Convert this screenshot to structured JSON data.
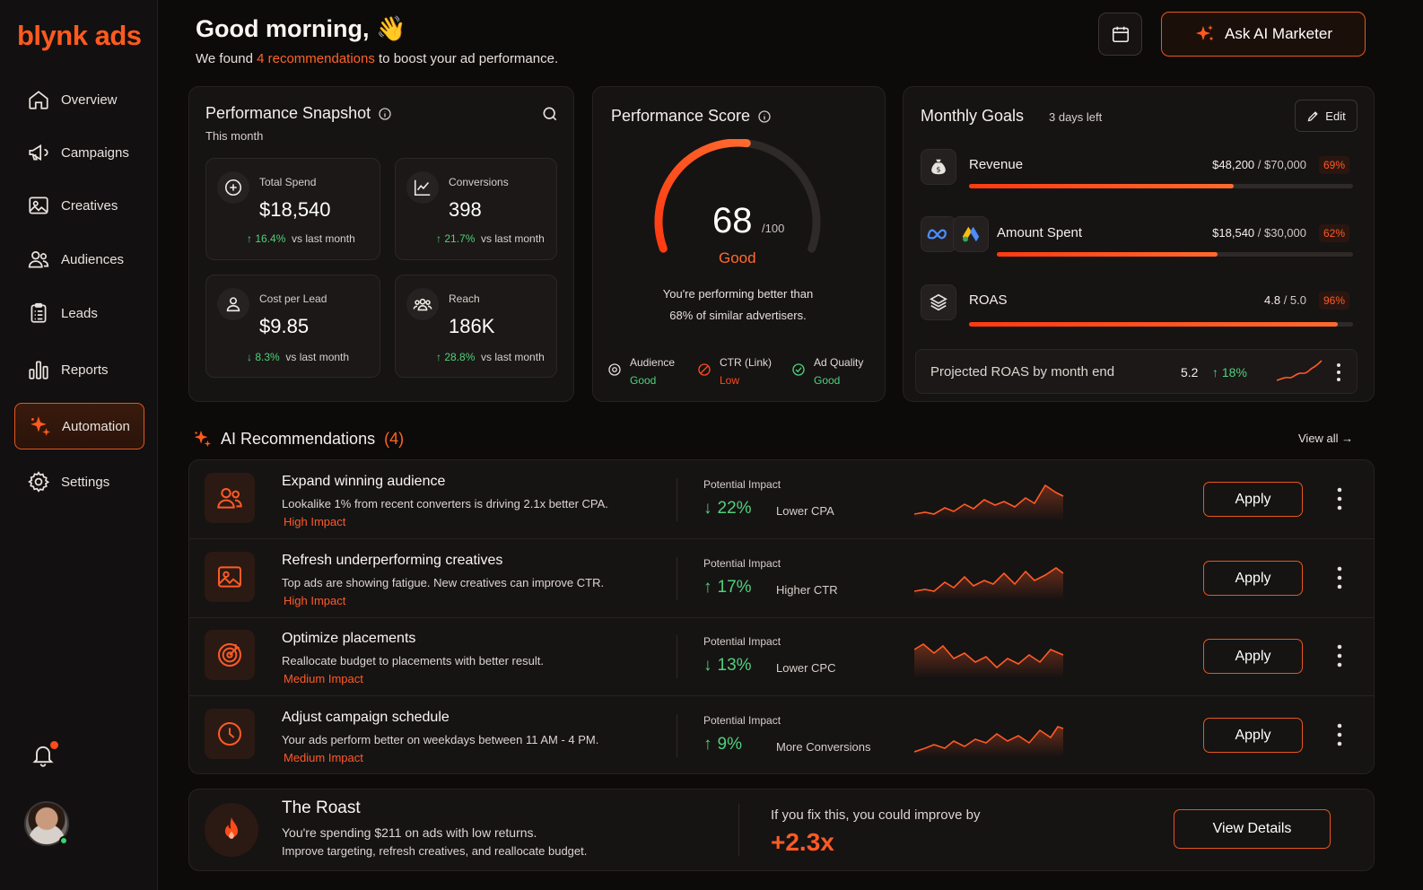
{
  "brand": {
    "logo": "blynk ads",
    "accent": "#ff5a1f"
  },
  "sidebar": {
    "items": [
      {
        "label": "Overview",
        "icon": "home-icon"
      },
      {
        "label": "Campaigns",
        "icon": "megaphone-icon"
      },
      {
        "label": "Creatives",
        "icon": "image-icon"
      },
      {
        "label": "Audiences",
        "icon": "users-icon"
      },
      {
        "label": "Leads",
        "icon": "clipboard-icon"
      },
      {
        "label": "Reports",
        "icon": "bar-chart-icon"
      },
      {
        "label": "Automation",
        "icon": "sparkle-icon",
        "active": true
      },
      {
        "label": "Settings",
        "icon": "gear-icon"
      }
    ]
  },
  "header": {
    "greeting": "Good morning, 👋",
    "sub_prefix": "We found ",
    "sub_highlight": "4 recommendations",
    "sub_suffix": " to boost your ad performance.",
    "ask_button": "Ask AI Marketer"
  },
  "snapshot": {
    "title": "Performance Snapshot",
    "period": "This month",
    "metrics": [
      {
        "label": "Total Spend",
        "value": "$18,540",
        "change": "16.4%",
        "suffix": "vs last month"
      },
      {
        "label": "Conversions",
        "value": "398",
        "change": "21.7%",
        "suffix": "vs last month"
      },
      {
        "label": "Cost per Lead",
        "value": "$9.85",
        "change": "8.3%",
        "suffix": "vs last month"
      },
      {
        "label": "Reach",
        "value": "186K",
        "change": "28.8%",
        "suffix": "vs last month"
      }
    ]
  },
  "score": {
    "title": "Performance Score",
    "value": "68",
    "max": "/100",
    "fraction": 0.68,
    "rating": "Good",
    "text_line1": "You're performing better than",
    "text_line2": "68% of similar advertisers.",
    "subs": [
      {
        "label": "Audience",
        "value": "Good"
      },
      {
        "label": "CTR (Link)",
        "value": "Low"
      },
      {
        "label": "Ad Quality",
        "value": "Good"
      }
    ]
  },
  "goals": {
    "title": "Monthly Goals",
    "days_left": "3 days left",
    "edit": "Edit",
    "items": [
      {
        "name": "Revenue",
        "current": "$48,200",
        "target": " / $70,000",
        "pct": "69%",
        "fraction": 0.69
      },
      {
        "name": "Amount Spent",
        "current": "$18,540",
        "target": " / $30,000",
        "pct": "62%",
        "fraction": 0.62
      },
      {
        "name": "ROAS",
        "current": "4.8",
        "target": " / 5.0",
        "pct": "96%",
        "fraction": 0.96
      }
    ],
    "projected_label": "Projected ROAS by month end",
    "projected_value": "5.2",
    "projected_change": "18%"
  },
  "recs": {
    "title": "AI Recommendations",
    "count": "(4)",
    "view_all": "View all →",
    "impact_label": "Potential Impact",
    "apply": "Apply",
    "items": [
      {
        "title": "Expand winning audience",
        "desc": "Lookalike 1% from recent converters is driving 2.1x better CPA.",
        "impact": "High Impact",
        "value": "22%",
        "dir": "down",
        "metric": "Lower CPA"
      },
      {
        "title": "Refresh underperforming creatives",
        "desc": "Top ads are showing fatigue. New creatives can improve CTR.",
        "impact": "High Impact",
        "value": "17%",
        "dir": "up",
        "metric": "Higher CTR"
      },
      {
        "title": "Optimize placements",
        "desc": "Reallocate budget to placements with better result.",
        "impact": "Medium Impact",
        "value": "13%",
        "dir": "down",
        "metric": "Lower CPC"
      },
      {
        "title": "Adjust campaign schedule",
        "desc": "Your ads perform better on weekdays between 11 AM - 4 PM.",
        "impact": "Medium Impact",
        "value": "9%",
        "dir": "up",
        "metric": "More Conversions"
      }
    ]
  },
  "roast": {
    "title": "The Roast",
    "line1": "You're spending $211 on ads with low returns.",
    "line2": "Improve targeting, refresh creatives, and reallocate budget.",
    "if_text": "If you fix this, you could improve by",
    "improve": "+2.3x",
    "button": "View Details"
  }
}
